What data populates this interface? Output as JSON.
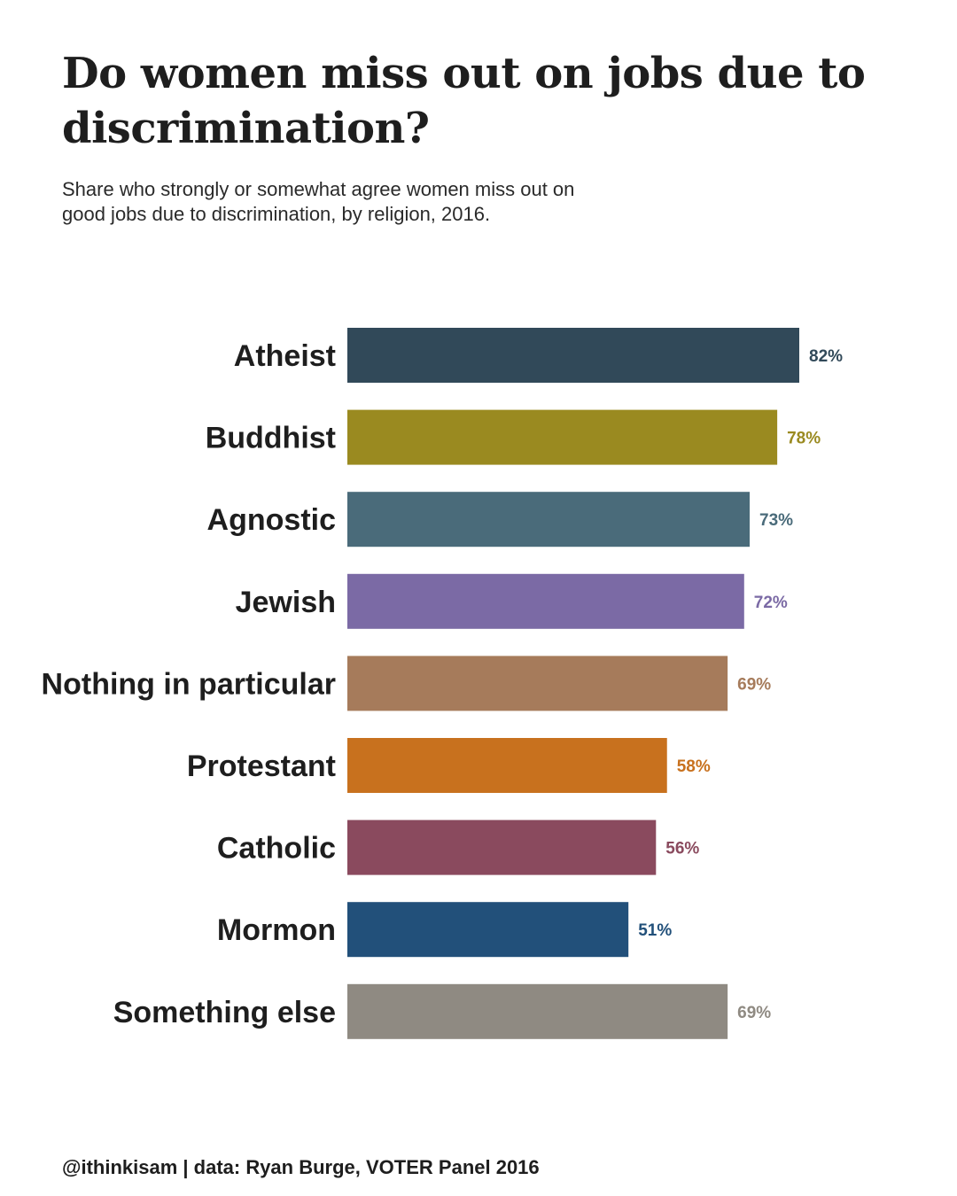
{
  "title": "Do women miss out on jobs due to discrimination?",
  "subtitle": "Share who strongly or somewhat agree women miss out on good jobs due to discrimination, by religion, 2016.",
  "caption": "@ithinkisam | data: Ryan Burge, VOTER Panel 2016",
  "chart_data": {
    "type": "bar",
    "orientation": "horizontal",
    "categories": [
      "Atheist",
      "Buddhist",
      "Agnostic",
      "Jewish",
      "Nothing in particular",
      "Protestant",
      "Catholic",
      "Mormon",
      "Something else"
    ],
    "values": [
      82,
      78,
      73,
      72,
      69,
      58,
      56,
      51,
      69
    ],
    "labels": [
      "82%",
      "78%",
      "73%",
      "72%",
      "69%",
      "58%",
      "56%",
      "51%",
      "69%"
    ],
    "colors": [
      "#314959",
      "#9a8a20",
      "#4a6b7a",
      "#7b6aa5",
      "#a67b5b",
      "#c8711e",
      "#8a4a5e",
      "#22507a",
      "#8f8a82"
    ],
    "xlim": [
      0,
      100
    ],
    "grid": false,
    "legend": "none"
  }
}
